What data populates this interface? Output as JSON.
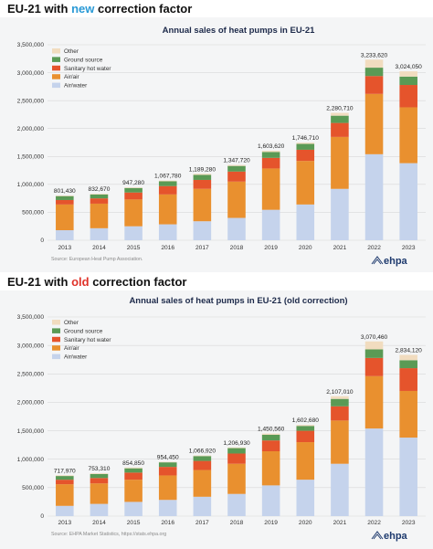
{
  "colors": {
    "air_water": "#c5d3ec",
    "air_air": "#e9902f",
    "sanitary_hot_water": "#e5542c",
    "ground_source": "#5a9a55",
    "other": "#f1dcbf",
    "heading_new": "#2a9ad6",
    "heading_old": "#e0332a"
  },
  "logo": "ehpa",
  "sections": [
    {
      "heading_prefix": "EU-21 with ",
      "heading_highlight": "new",
      "heading_suffix": " correction factor",
      "source": "Source: European Heat Pump Association.",
      "chart_data": {
        "type": "bar",
        "stacked": true,
        "title": "Annual sales of heat pumps in EU-21",
        "xlabel": "",
        "ylabel": "",
        "ylim": [
          0,
          3500000
        ],
        "y_ticks": [
          "0",
          "500,000",
          "1,000,000",
          "1,500,000",
          "2,000,000",
          "2,500,000",
          "3,000,000",
          "3,500,000"
        ],
        "grid": true,
        "legend_position": "top-left",
        "categories": [
          "2013",
          "2014",
          "2015",
          "2016",
          "2017",
          "2018",
          "2019",
          "2020",
          "2021",
          "2022",
          "2023"
        ],
        "total_labels": [
          "801,430",
          "832,670",
          "947,280",
          "1,067,780",
          "1,189,280",
          "1,347,720",
          "1,603,620",
          "1,746,710",
          "2,280,710",
          "3,233,620",
          "3,024,050"
        ],
        "series": [
          {
            "name": "Air/water",
            "color_key": "air_water",
            "values": [
              180000,
              215000,
              250000,
              285000,
              340000,
              400000,
              545000,
              640000,
              920000,
              1540000,
              1380000
            ]
          },
          {
            "name": "Air/air",
            "color_key": "air_air",
            "values": [
              460000,
              440000,
              480000,
              535000,
              580000,
              650000,
              740000,
              780000,
              930000,
              1080000,
              1000000
            ]
          },
          {
            "name": "Sanitary hot water",
            "color_key": "sanitary_hot_water",
            "values": [
              80000,
              95000,
              125000,
              150000,
              160000,
              180000,
              190000,
              200000,
              250000,
              320000,
              400000
            ]
          },
          {
            "name": "Ground source",
            "color_key": "ground_source",
            "values": [
              70000,
              70000,
              80000,
              85000,
              90000,
              100000,
              105000,
              105000,
              130000,
              150000,
              150000
            ]
          },
          {
            "name": "Other",
            "color_key": "other",
            "values": [
              11430,
              12670,
              12280,
              12780,
              19280,
              17720,
              23620,
              21710,
              50710,
              143620,
              94050
            ]
          }
        ]
      }
    },
    {
      "heading_prefix": "EU-21 with ",
      "heading_highlight": "old",
      "heading_suffix": " correction factor",
      "source": "Source: EHPA Market Statistics, https://stats.ehpa.org",
      "chart_data": {
        "type": "bar",
        "stacked": true,
        "title": "Annual sales of heat pumps in EU-21 (old correction)",
        "xlabel": "",
        "ylabel": "",
        "ylim": [
          0,
          3500000
        ],
        "y_ticks": [
          "0",
          "500,000",
          "1,000,000",
          "1,500,000",
          "2,000,000",
          "2,500,000",
          "3,000,000",
          "3,500,000"
        ],
        "grid": true,
        "legend_position": "top-left",
        "categories": [
          "2013",
          "2014",
          "2015",
          "2016",
          "2017",
          "2018",
          "2019",
          "2020",
          "2021",
          "2022",
          "2023"
        ],
        "total_labels": [
          "717,970",
          "753,310",
          "854,850",
          "954,450",
          "1,066,920",
          "1,206,930",
          "1,450,560",
          "1,602,680",
          "2,107,010",
          "3,070,460",
          "2,834,120"
        ],
        "series": [
          {
            "name": "Air/water",
            "color_key": "air_water",
            "values": [
              180000,
              215000,
              250000,
              285000,
              340000,
              390000,
              540000,
              640000,
              920000,
              1540000,
              1380000
            ]
          },
          {
            "name": "Air/air",
            "color_key": "air_air",
            "values": [
              380000,
              360000,
              390000,
              430000,
              470000,
              530000,
              600000,
              660000,
              760000,
              920000,
              820000
            ]
          },
          {
            "name": "Sanitary hot water",
            "color_key": "sanitary_hot_water",
            "values": [
              80000,
              95000,
              125000,
              150000,
              160000,
              180000,
              190000,
              200000,
              250000,
              320000,
              400000
            ]
          },
          {
            "name": "Ground source",
            "color_key": "ground_source",
            "values": [
              65000,
              70000,
              75000,
              80000,
              85000,
              95000,
              100000,
              85000,
              130000,
              150000,
              140000
            ]
          },
          {
            "name": "Other",
            "color_key": "other",
            "values": [
              12970,
              13310,
              14850,
              9450,
              11920,
              11930,
              20560,
              17680,
              47010,
              140460,
              94120
            ]
          }
        ]
      }
    }
  ]
}
